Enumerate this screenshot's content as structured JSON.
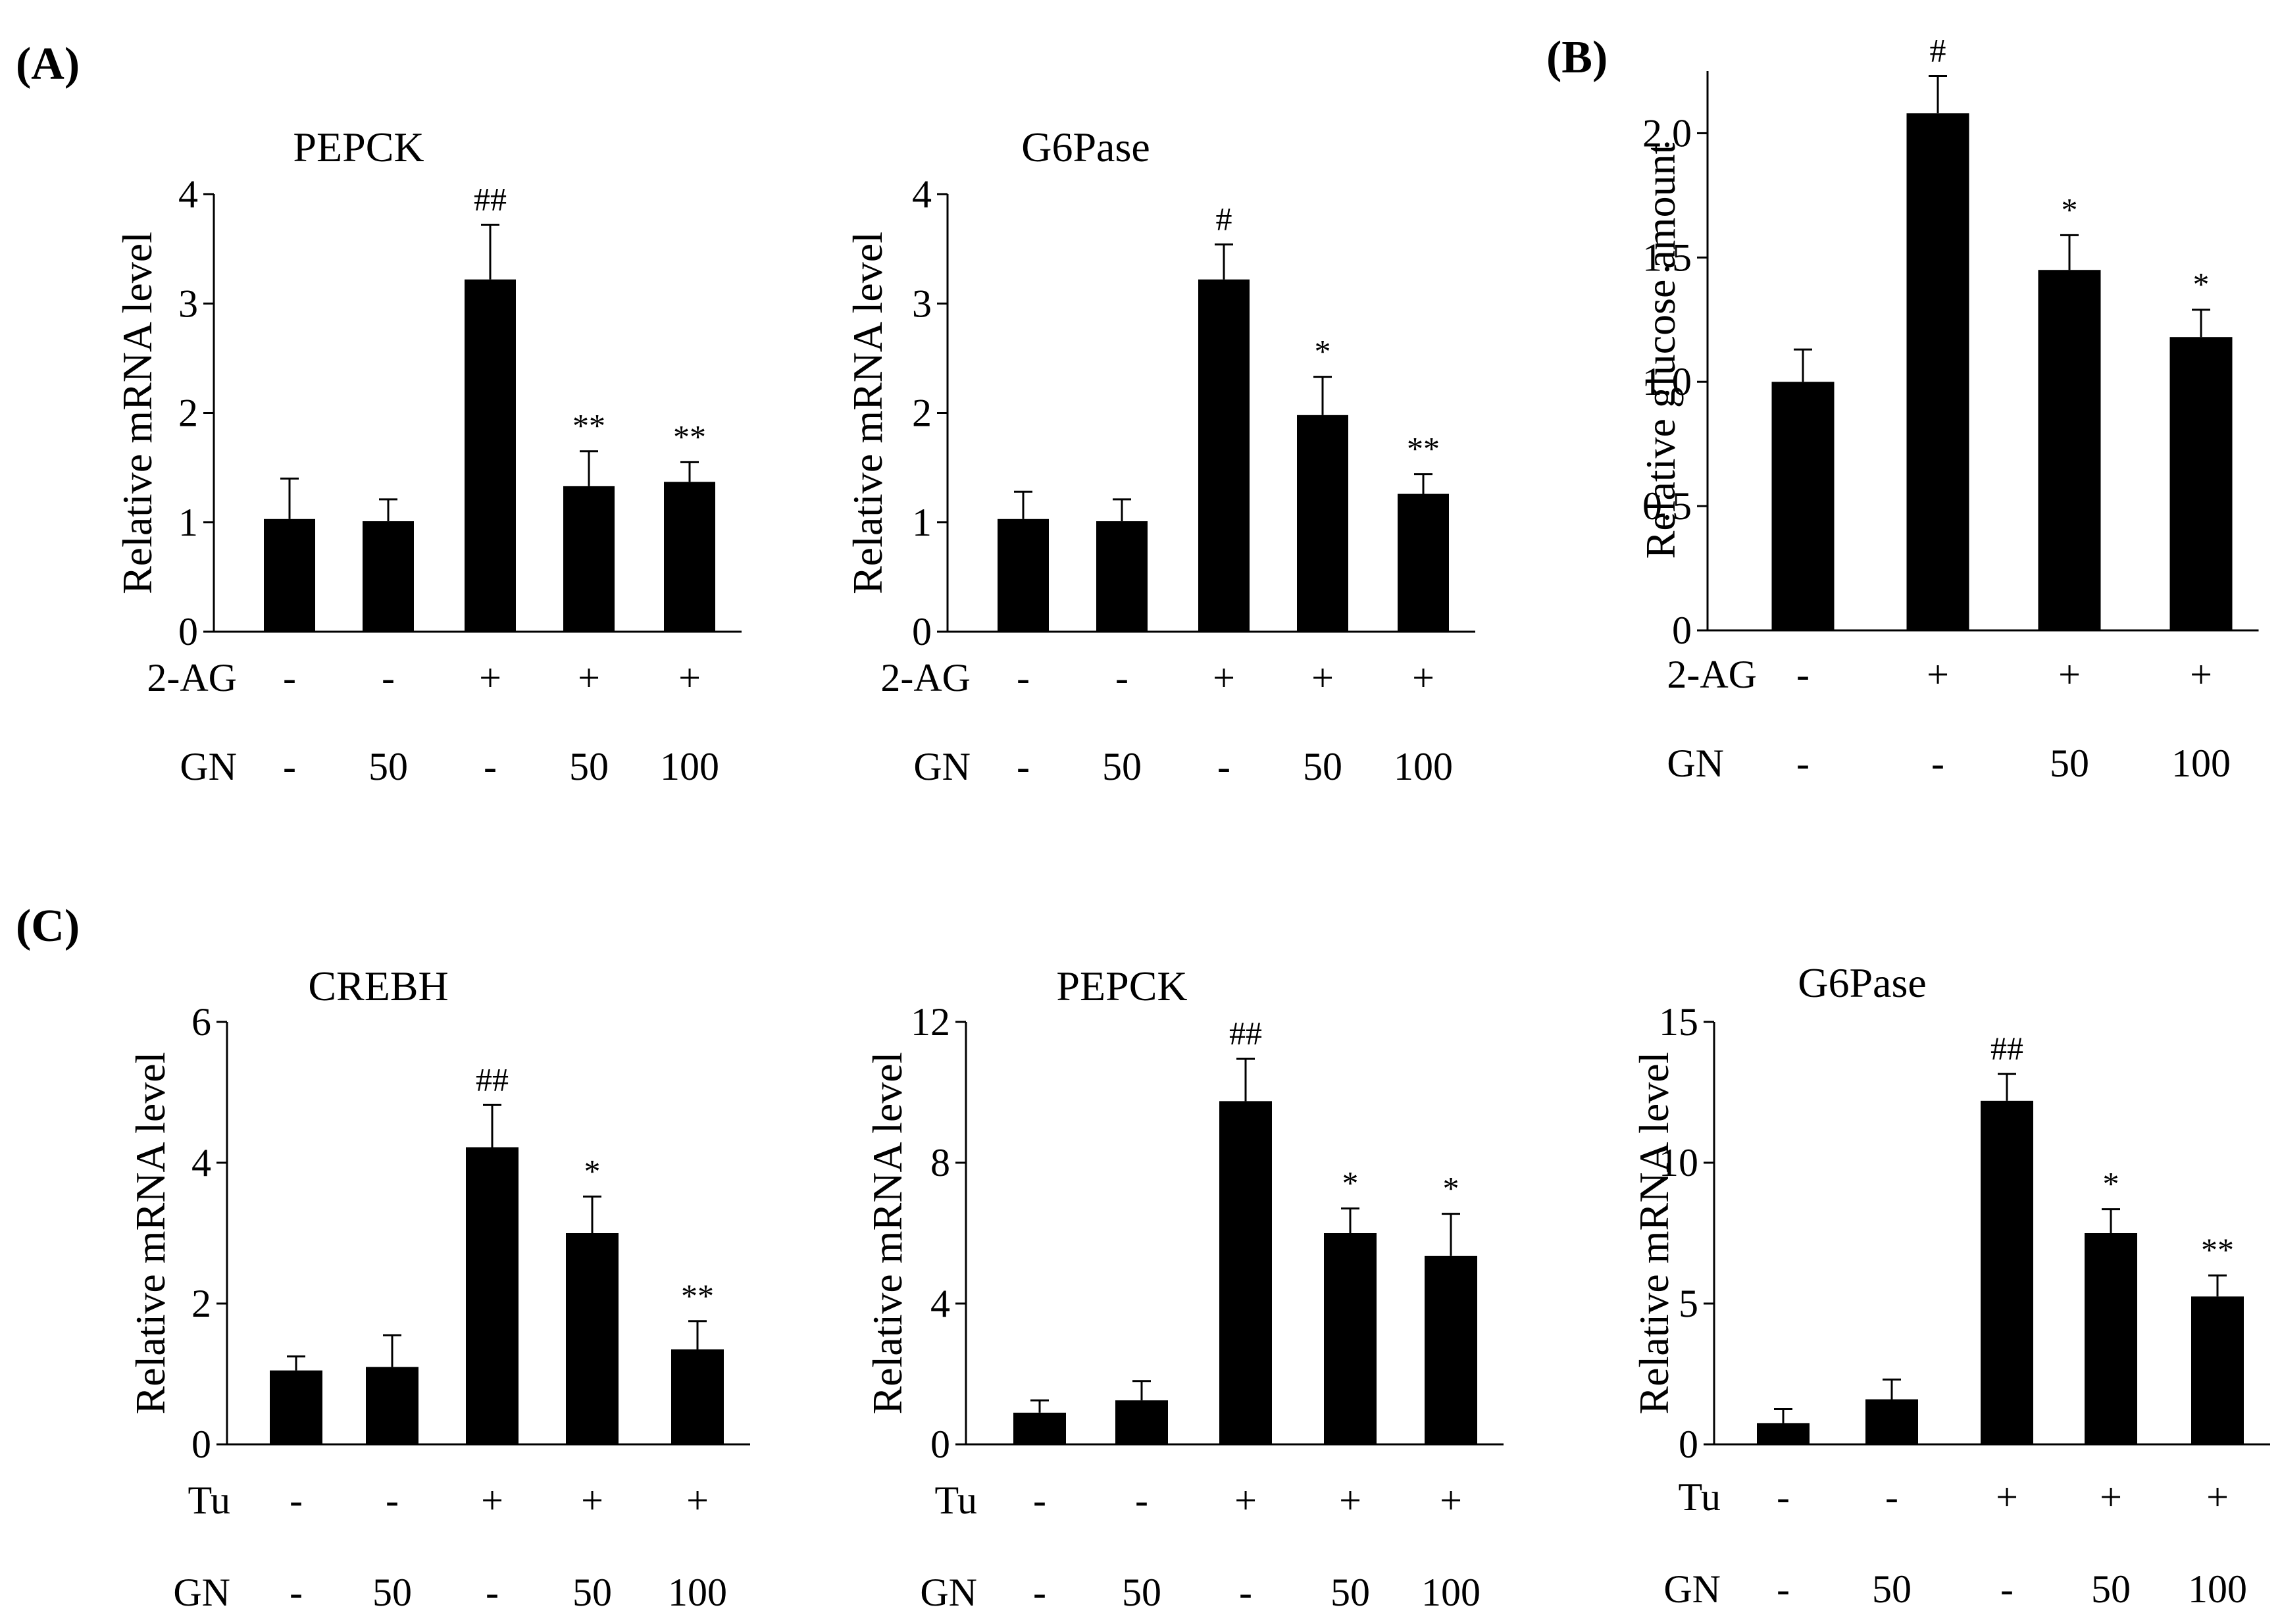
{
  "panels": [
    {
      "letter": "(A)"
    },
    {
      "letter": "(B)"
    },
    {
      "letter": "(C)"
    }
  ],
  "chart_data": [
    {
      "type": "bar",
      "panel": "(A)",
      "title": "PEPCK",
      "ylabel": "Relative mRNA level",
      "ylim": [
        0,
        4
      ],
      "yticks": [
        0,
        1,
        2,
        3,
        4
      ],
      "categories": [
        "1",
        "2",
        "3",
        "4",
        "5"
      ],
      "values": [
        1.03,
        1.01,
        3.22,
        1.33,
        1.37
      ],
      "errors": [
        0.37,
        0.2,
        0.5,
        0.32,
        0.18
      ],
      "significance": [
        "",
        "",
        "##",
        "**",
        "**"
      ],
      "treatment_rows": [
        {
          "label": "2-AG",
          "values": [
            "-",
            "-",
            "+",
            "+",
            "+"
          ]
        },
        {
          "label": "GN",
          "values": [
            "-",
            "50",
            "-",
            "50",
            "100"
          ]
        }
      ]
    },
    {
      "type": "bar",
      "panel": "(A)",
      "title": "G6Pase",
      "ylabel": "Relative mRNA level",
      "ylim": [
        0,
        4
      ],
      "yticks": [
        0,
        1,
        2,
        3,
        4
      ],
      "categories": [
        "1",
        "2",
        "3",
        "4",
        "5"
      ],
      "values": [
        1.03,
        1.01,
        3.22,
        1.98,
        1.26
      ],
      "errors": [
        0.25,
        0.2,
        0.32,
        0.35,
        0.18
      ],
      "significance": [
        "",
        "",
        "#",
        "*",
        "**"
      ],
      "treatment_rows": [
        {
          "label": "2-AG",
          "values": [
            "-",
            "-",
            "+",
            "+",
            "+"
          ]
        },
        {
          "label": "GN",
          "values": [
            "-",
            "50",
            "-",
            "50",
            "100"
          ]
        }
      ]
    },
    {
      "type": "bar",
      "panel": "(B)",
      "title": "",
      "ylabel": "Relative glucose amount",
      "ylim": [
        0,
        2.25
      ],
      "yticks": [
        0,
        0.5,
        1.0,
        1.5,
        2.0
      ],
      "ytick_labels": [
        "0",
        "0.5",
        "1.0",
        "1.5",
        "2.0"
      ],
      "categories": [
        "1",
        "2",
        "3",
        "4"
      ],
      "values": [
        1.0,
        2.08,
        1.45,
        1.18
      ],
      "errors": [
        0.13,
        0.15,
        0.14,
        0.11
      ],
      "significance": [
        "",
        "#",
        "*",
        "*"
      ],
      "treatment_rows": [
        {
          "label": "2-AG",
          "values": [
            "-",
            "+",
            "+",
            "+"
          ]
        },
        {
          "label": "GN",
          "values": [
            "-",
            "-",
            "50",
            "100"
          ]
        }
      ]
    },
    {
      "type": "bar",
      "panel": "(C)",
      "title": "CREBH",
      "ylabel": "Relative mRNA level",
      "ylim": [
        0,
        6
      ],
      "yticks": [
        0,
        2,
        4,
        6
      ],
      "categories": [
        "1",
        "2",
        "3",
        "4",
        "5"
      ],
      "values": [
        1.05,
        1.1,
        4.22,
        3.0,
        1.35
      ],
      "errors": [
        0.2,
        0.45,
        0.6,
        0.52,
        0.4
      ],
      "significance": [
        "",
        "",
        "##",
        "*",
        "**"
      ],
      "treatment_rows": [
        {
          "label": "Tu",
          "values": [
            "-",
            "-",
            "+",
            "+",
            "+"
          ]
        },
        {
          "label": "GN",
          "values": [
            "-",
            "50",
            "-",
            "50",
            "100"
          ]
        }
      ]
    },
    {
      "type": "bar",
      "panel": "(C)",
      "title": "PEPCK",
      "ylabel": "Relative mRNA level",
      "ylim": [
        0,
        12
      ],
      "yticks": [
        0,
        4,
        8,
        12
      ],
      "categories": [
        "1",
        "2",
        "3",
        "4",
        "5"
      ],
      "values": [
        0.9,
        1.25,
        9.75,
        6.0,
        5.35
      ],
      "errors": [
        0.35,
        0.55,
        1.2,
        0.7,
        1.2
      ],
      "significance": [
        "",
        "",
        "##",
        "*",
        "*"
      ],
      "treatment_rows": [
        {
          "label": "Tu",
          "values": [
            "-",
            "-",
            "+",
            "+",
            "+"
          ]
        },
        {
          "label": "GN",
          "values": [
            "-",
            "50",
            "-",
            "50",
            "100"
          ]
        }
      ]
    },
    {
      "type": "bar",
      "panel": "(C)",
      "title": "G6Pase",
      "ylabel": "Relative mRNA level",
      "ylim": [
        0,
        15
      ],
      "yticks": [
        0,
        5,
        10,
        15
      ],
      "categories": [
        "1",
        "2",
        "3",
        "4",
        "5"
      ],
      "values": [
        0.75,
        1.6,
        12.2,
        7.5,
        5.25
      ],
      "errors": [
        0.5,
        0.7,
        0.95,
        0.85,
        0.75
      ],
      "significance": [
        "",
        "",
        "##",
        "*",
        "**"
      ],
      "treatment_rows": [
        {
          "label": "Tu",
          "values": [
            "-",
            "-",
            "+",
            "+",
            "+"
          ]
        },
        {
          "label": "GN",
          "values": [
            "-",
            "50",
            "-",
            "50",
            "100"
          ]
        }
      ]
    }
  ]
}
